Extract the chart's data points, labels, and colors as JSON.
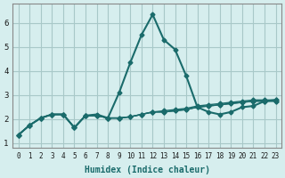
{
  "title": "",
  "xlabel": "Humidex (Indice chaleur)",
  "ylabel": "",
  "background_color": "#d6eeee",
  "grid_color": "#a8c8c8",
  "line_color": "#1a6b6b",
  "xlim": [
    -0.5,
    23.5
  ],
  "ylim": [
    0.8,
    6.8
  ],
  "xticks": [
    0,
    1,
    2,
    3,
    4,
    5,
    6,
    7,
    8,
    9,
    10,
    11,
    12,
    13,
    14,
    15,
    16,
    17,
    18,
    19,
    20,
    21,
    22,
    23
  ],
  "yticks": [
    1,
    2,
    3,
    4,
    5,
    6
  ],
  "series": [
    [
      1.35,
      1.75,
      2.05,
      2.2,
      2.2,
      1.65,
      2.15,
      2.2,
      2.05,
      3.1,
      4.35,
      5.5,
      6.35,
      5.3,
      4.9,
      3.8,
      2.5,
      2.3,
      2.2,
      2.3,
      2.5,
      2.55,
      2.75,
      2.8
    ],
    [
      1.35,
      1.75,
      2.05,
      2.2,
      2.2,
      1.65,
      2.15,
      2.15,
      2.05,
      2.05,
      2.1,
      2.2,
      2.3,
      2.3,
      2.35,
      2.4,
      2.5,
      2.55,
      2.6,
      2.65,
      2.7,
      2.75,
      2.75,
      2.75
    ],
    [
      1.35,
      1.75,
      2.05,
      2.2,
      2.2,
      1.65,
      2.15,
      2.15,
      2.05,
      2.05,
      2.1,
      2.2,
      2.3,
      2.3,
      2.35,
      2.4,
      2.5,
      2.55,
      2.6,
      2.65,
      2.7,
      2.75,
      2.75,
      2.75
    ],
    [
      1.35,
      1.75,
      2.05,
      2.2,
      2.2,
      1.65,
      2.15,
      2.15,
      2.05,
      2.05,
      2.1,
      2.2,
      2.3,
      2.35,
      2.4,
      2.45,
      2.55,
      2.6,
      2.65,
      2.7,
      2.75,
      2.8,
      2.8,
      2.8
    ]
  ]
}
